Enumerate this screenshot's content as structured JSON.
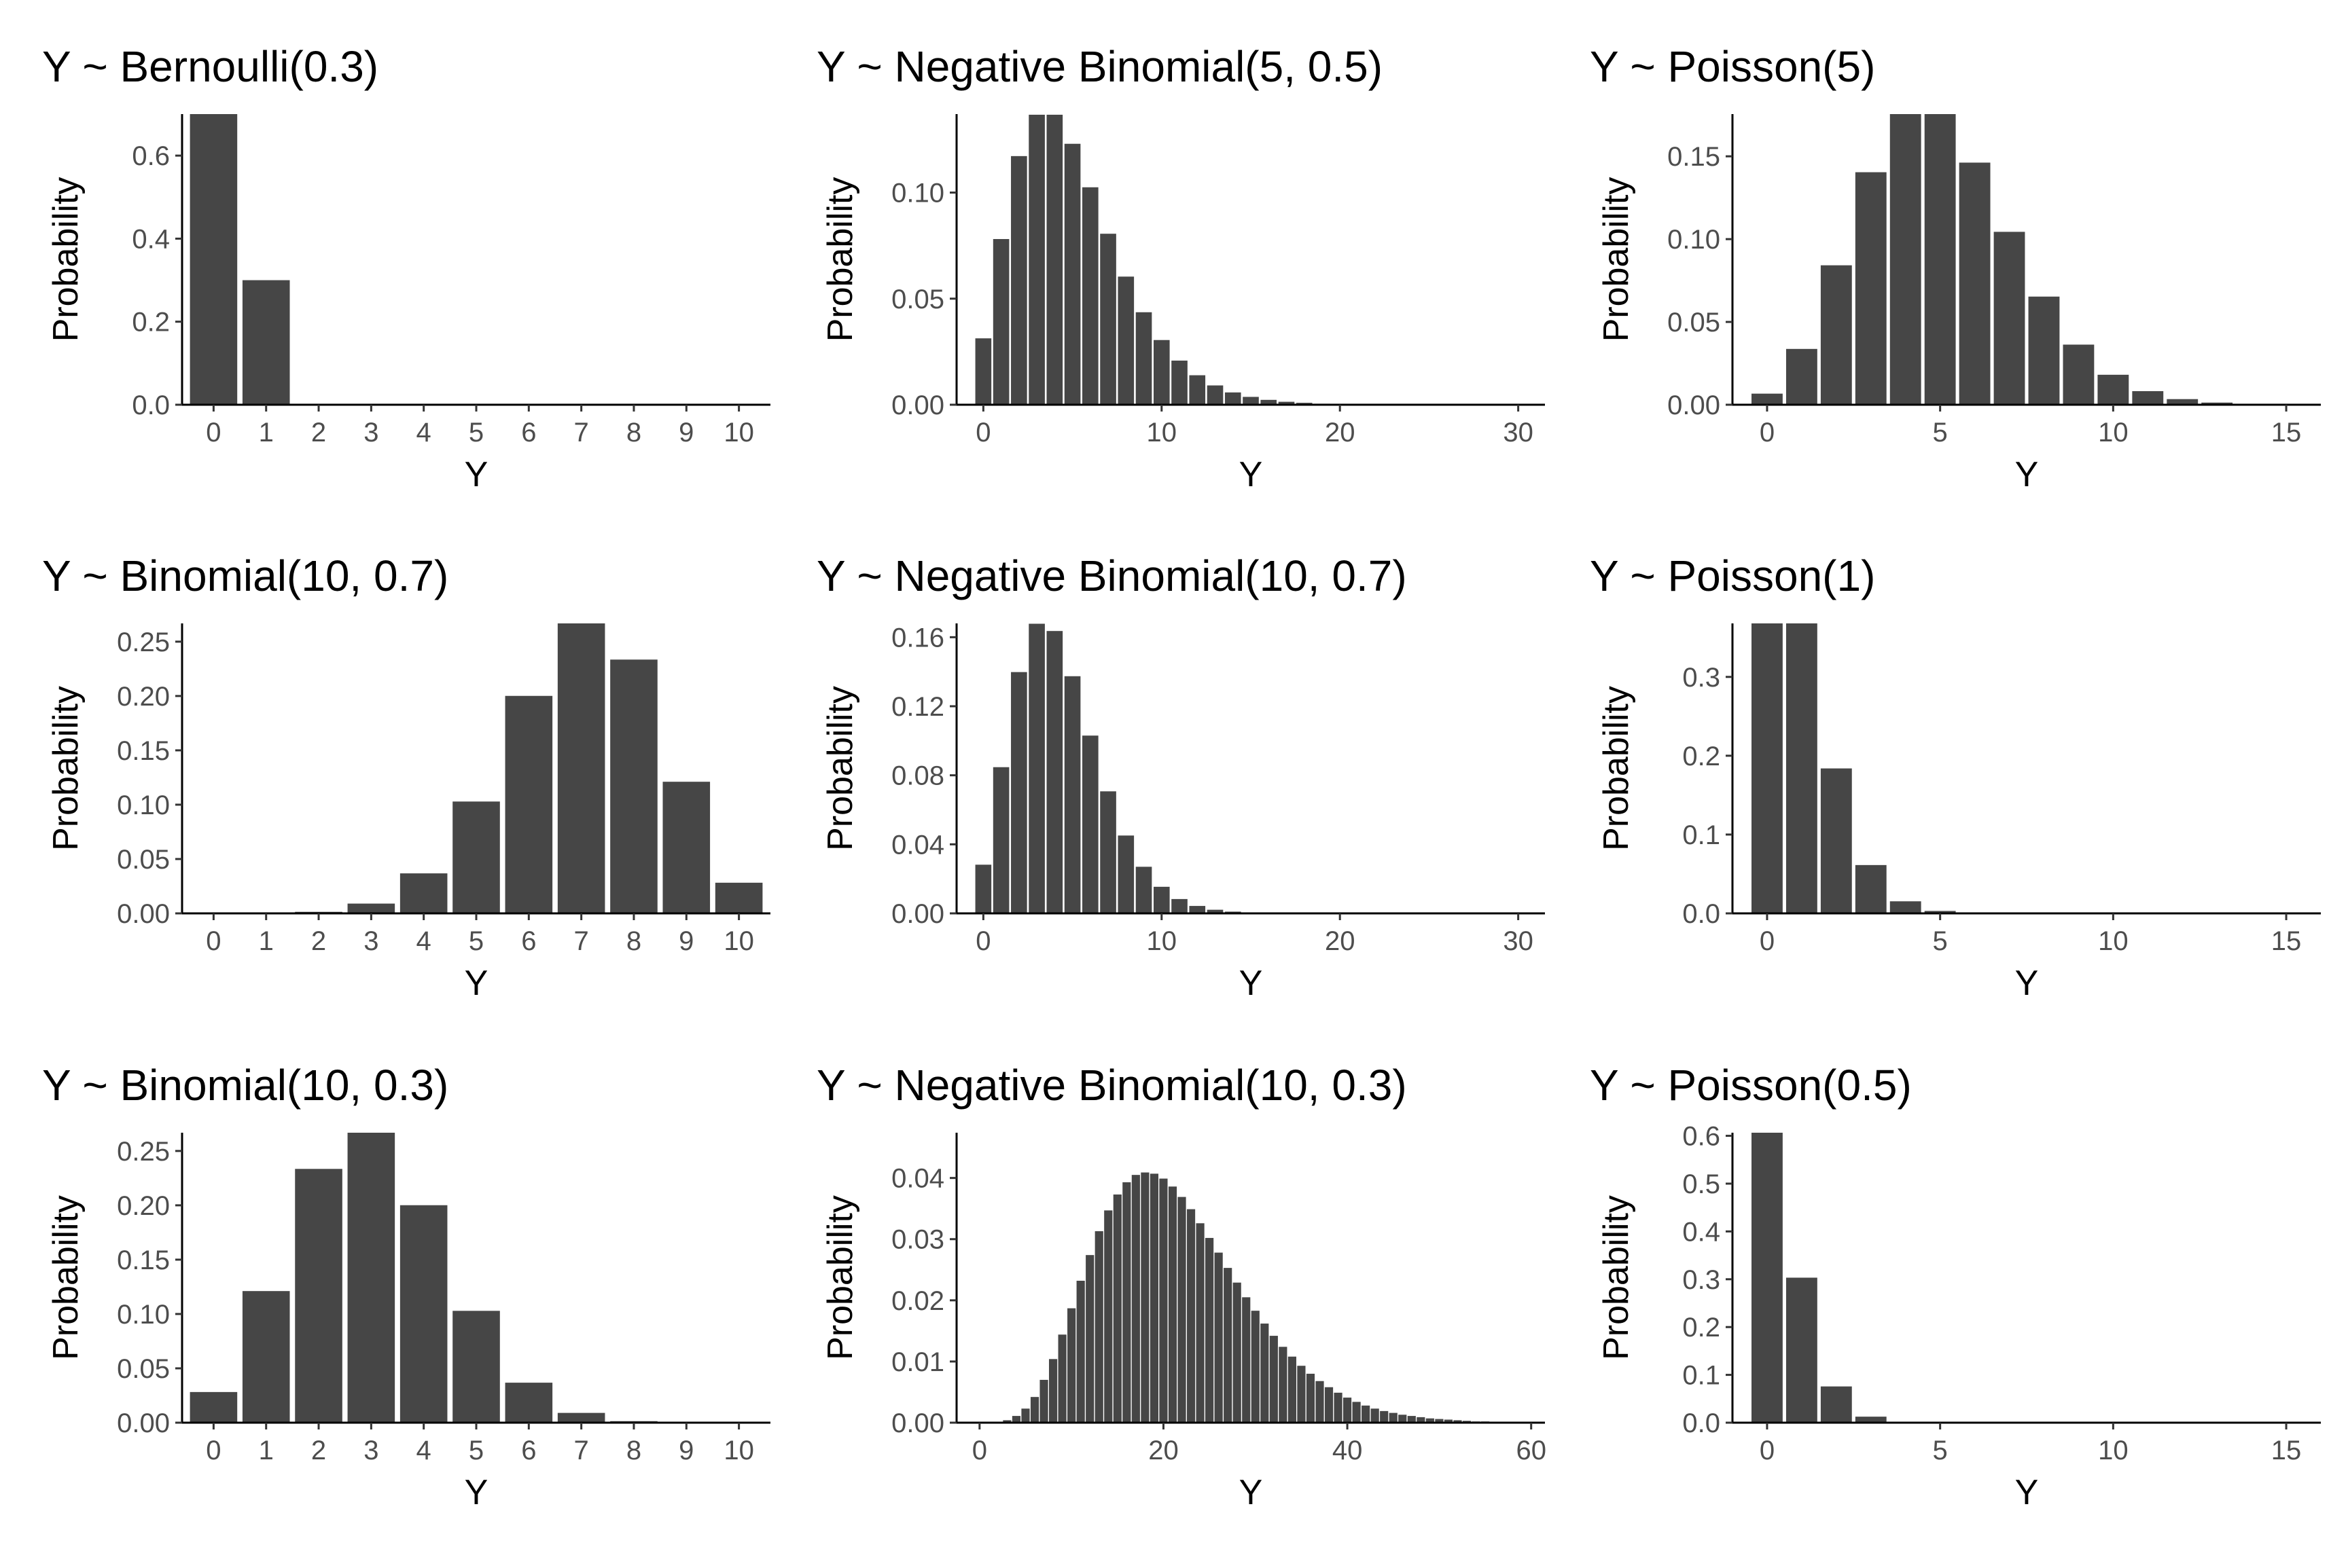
{
  "chart_data": [
    {
      "type": "bar",
      "title": "Y ~ Bernoulli(0.3)",
      "xlabel": "Y",
      "ylabel": "Probability",
      "xlim": [
        -0.6,
        10.6
      ],
      "ylim": [
        0,
        0.7
      ],
      "x": [
        0,
        1
      ],
      "values": [
        0.7,
        0.3
      ],
      "xticks": [
        "0",
        "1",
        "2",
        "3",
        "4",
        "5",
        "6",
        "7",
        "8",
        "9",
        "10"
      ],
      "yticks": [
        "0.0",
        "0.2",
        "0.4",
        "0.6"
      ]
    },
    {
      "type": "bar",
      "title": "Y ~ Negative Binomial(5, 0.5)",
      "xlabel": "Y",
      "ylabel": "Probability",
      "xlim": [
        -1.5,
        31.5
      ],
      "ylim": [
        0,
        0.137
      ],
      "x": [
        0,
        1,
        2,
        3,
        4,
        5,
        6,
        7,
        8,
        9,
        10,
        11,
        12,
        13,
        14,
        15,
        16,
        17,
        18,
        19,
        20,
        21,
        22,
        23,
        24,
        25,
        26,
        27,
        28,
        29,
        30
      ],
      "values": [
        0.0313,
        0.0781,
        0.1172,
        0.1367,
        0.1367,
        0.123,
        0.1025,
        0.0806,
        0.0604,
        0.0436,
        0.0305,
        0.0208,
        0.0139,
        0.0091,
        0.0058,
        0.0037,
        0.0023,
        0.0014,
        0.0009,
        0.0005,
        0.0003,
        0.0002,
        0.0001,
        0.0001,
        0.0,
        0.0,
        0.0,
        0.0,
        0.0,
        0.0,
        0.0
      ],
      "xticks": [
        "0",
        "10",
        "20",
        "30"
      ],
      "yticks": [
        "0.00",
        "0.05",
        "0.10"
      ]
    },
    {
      "type": "bar",
      "title": "Y ~ Poisson(5)",
      "xlabel": "Y",
      "ylabel": "Probability",
      "xlim": [
        -1.0,
        16.0
      ],
      "ylim": [
        0,
        0.1755
      ],
      "x": [
        0,
        1,
        2,
        3,
        4,
        5,
        6,
        7,
        8,
        9,
        10,
        11,
        12,
        13,
        14,
        15
      ],
      "values": [
        0.0067,
        0.0337,
        0.0842,
        0.1404,
        0.1755,
        0.1755,
        0.1462,
        0.1044,
        0.0653,
        0.0363,
        0.0181,
        0.0082,
        0.0034,
        0.0013,
        0.0005,
        0.0002
      ],
      "xticks": [
        "0",
        "5",
        "10",
        "15"
      ],
      "yticks": [
        "0.00",
        "0.05",
        "0.10",
        "0.15"
      ]
    },
    {
      "type": "bar",
      "title": "Y ~ Binomial(10, 0.7)",
      "xlabel": "Y",
      "ylabel": "Probability",
      "xlim": [
        -0.6,
        10.6
      ],
      "ylim": [
        0,
        0.2668
      ],
      "x": [
        0,
        1,
        2,
        3,
        4,
        5,
        6,
        7,
        8,
        9,
        10
      ],
      "values": [
        0.0,
        0.0001,
        0.0014,
        0.009,
        0.0368,
        0.1029,
        0.2001,
        0.2668,
        0.2335,
        0.1211,
        0.0282
      ],
      "xticks": [
        "0",
        "1",
        "2",
        "3",
        "4",
        "5",
        "6",
        "7",
        "8",
        "9",
        "10"
      ],
      "yticks": [
        "0.00",
        "0.05",
        "0.10",
        "0.15",
        "0.20",
        "0.25"
      ]
    },
    {
      "type": "bar",
      "title": "Y ~ Negative Binomial(10, 0.7)",
      "xlabel": "Y",
      "ylabel": "Probability",
      "xlim": [
        -1.5,
        31.5
      ],
      "ylim": [
        0,
        0.168
      ],
      "x": [
        0,
        1,
        2,
        3,
        4,
        5,
        6,
        7,
        8,
        9,
        10,
        11,
        12,
        13,
        14,
        15,
        16,
        17,
        18,
        19,
        20,
        21,
        22,
        23,
        24,
        25,
        26,
        27,
        28,
        29,
        30
      ],
      "values": [
        0.0282,
        0.0847,
        0.1398,
        0.1678,
        0.1636,
        0.1374,
        0.103,
        0.0707,
        0.0451,
        0.027,
        0.0154,
        0.0083,
        0.0043,
        0.0021,
        0.001,
        0.0005,
        0.0002,
        0.0001,
        0.0,
        0.0,
        0.0,
        0.0,
        0.0,
        0.0,
        0.0,
        0.0,
        0.0,
        0.0,
        0.0,
        0.0,
        0.0
      ],
      "xticks": [
        "0",
        "10",
        "20",
        "30"
      ],
      "yticks": [
        "0.00",
        "0.04",
        "0.08",
        "0.12",
        "0.16"
      ]
    },
    {
      "type": "bar",
      "title": "Y ~ Poisson(1)",
      "xlabel": "Y",
      "ylabel": "Probability",
      "xlim": [
        -1.0,
        16.0
      ],
      "ylim": [
        0,
        0.3679
      ],
      "x": [
        0,
        1,
        2,
        3,
        4,
        5,
        6,
        7,
        8,
        9,
        10,
        11,
        12,
        13,
        14,
        15
      ],
      "values": [
        0.3679,
        0.3679,
        0.1839,
        0.0613,
        0.0153,
        0.0031,
        0.0005,
        0.0001,
        0.0,
        0.0,
        0.0,
        0.0,
        0.0,
        0.0,
        0.0,
        0.0
      ],
      "xticks": [
        "0",
        "5",
        "10",
        "15"
      ],
      "yticks": [
        "0.0",
        "0.1",
        "0.2",
        "0.3"
      ]
    },
    {
      "type": "bar",
      "title": "Y ~ Binomial(10, 0.3)",
      "xlabel": "Y",
      "ylabel": "Probability",
      "xlim": [
        -0.6,
        10.6
      ],
      "ylim": [
        0,
        0.2668
      ],
      "x": [
        0,
        1,
        2,
        3,
        4,
        5,
        6,
        7,
        8,
        9,
        10
      ],
      "values": [
        0.0282,
        0.1211,
        0.2335,
        0.2668,
        0.2001,
        0.1029,
        0.0368,
        0.009,
        0.0014,
        0.0001,
        0.0
      ],
      "xticks": [
        "0",
        "1",
        "2",
        "3",
        "4",
        "5",
        "6",
        "7",
        "8",
        "9",
        "10"
      ],
      "yticks": [
        "0.00",
        "0.05",
        "0.10",
        "0.15",
        "0.20",
        "0.25"
      ]
    },
    {
      "type": "bar",
      "title": "Y ~ Negative Binomial(10, 0.3)",
      "xlabel": "Y",
      "ylabel": "Probability",
      "xlim": [
        -2.5,
        61.5
      ],
      "ylim": [
        0,
        0.0474
      ],
      "x": [
        0,
        1,
        2,
        3,
        4,
        5,
        6,
        7,
        8,
        9,
        10,
        11,
        12,
        13,
        14,
        15,
        16,
        17,
        18,
        19,
        20,
        21,
        22,
        23,
        24,
        25,
        26,
        27,
        28,
        29,
        30,
        31,
        32,
        33,
        34,
        35,
        36,
        37,
        38,
        39,
        40,
        41,
        42,
        43,
        44,
        45,
        46,
        47,
        48,
        49,
        50,
        51,
        52,
        53,
        54,
        55,
        56,
        57,
        58,
        59,
        60
      ],
      "values": [
        0.0,
        0.0,
        0.0001,
        0.0004,
        0.0011,
        0.0023,
        0.0042,
        0.007,
        0.0104,
        0.0144,
        0.0187,
        0.0232,
        0.0274,
        0.0313,
        0.0347,
        0.0373,
        0.0393,
        0.0405,
        0.0409,
        0.0407,
        0.0399,
        0.0386,
        0.0369,
        0.0349,
        0.0326,
        0.0302,
        0.0278,
        0.0253,
        0.0229,
        0.0205,
        0.0183,
        0.0162,
        0.0142,
        0.0124,
        0.0108,
        0.0093,
        0.008,
        0.0068,
        0.0058,
        0.0049,
        0.0041,
        0.0034,
        0.0028,
        0.0023,
        0.0019,
        0.0016,
        0.0013,
        0.0011,
        0.0009,
        0.0007,
        0.0006,
        0.0005,
        0.0004,
        0.0003,
        0.0002,
        0.0002,
        0.0001,
        0.0001,
        0.0001,
        0.0001,
        0.0
      ],
      "xticks": [
        "0",
        "20",
        "40",
        "60"
      ],
      "yticks": [
        "0.00",
        "0.01",
        "0.02",
        "0.03",
        "0.04"
      ]
    },
    {
      "type": "bar",
      "title": "Y ~ Poisson(0.5)",
      "xlabel": "Y",
      "ylabel": "Probability",
      "xlim": [
        -1.0,
        16.0
      ],
      "ylim": [
        0,
        0.6065
      ],
      "x": [
        0,
        1,
        2,
        3,
        4,
        5,
        6,
        7,
        8,
        9,
        10,
        11,
        12,
        13,
        14,
        15
      ],
      "values": [
        0.6065,
        0.3033,
        0.0758,
        0.0126,
        0.0016,
        0.0002,
        0.0,
        0.0,
        0.0,
        0.0,
        0.0,
        0.0,
        0.0,
        0.0,
        0.0,
        0.0
      ],
      "xticks": [
        "0",
        "5",
        "10",
        "15"
      ],
      "yticks": [
        "0.0",
        "0.1",
        "0.2",
        "0.3",
        "0.4",
        "0.5",
        "0.6"
      ]
    }
  ]
}
